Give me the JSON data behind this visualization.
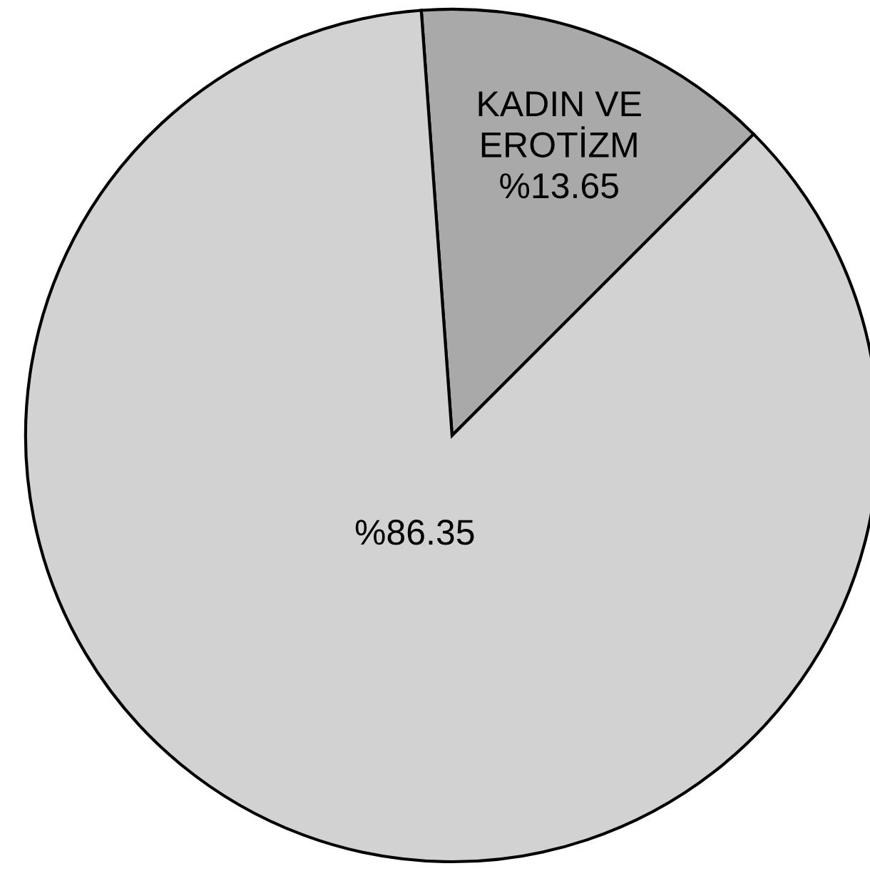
{
  "chart_data": {
    "type": "pie",
    "categories": [
      "KADIN VE EROTİZM",
      null
    ],
    "values": [
      13.65,
      86.35
    ],
    "colors": [
      "#a9a9a9",
      "#d2d2d2"
    ],
    "value_labels": [
      "%13.65",
      "%86.35"
    ]
  }
}
